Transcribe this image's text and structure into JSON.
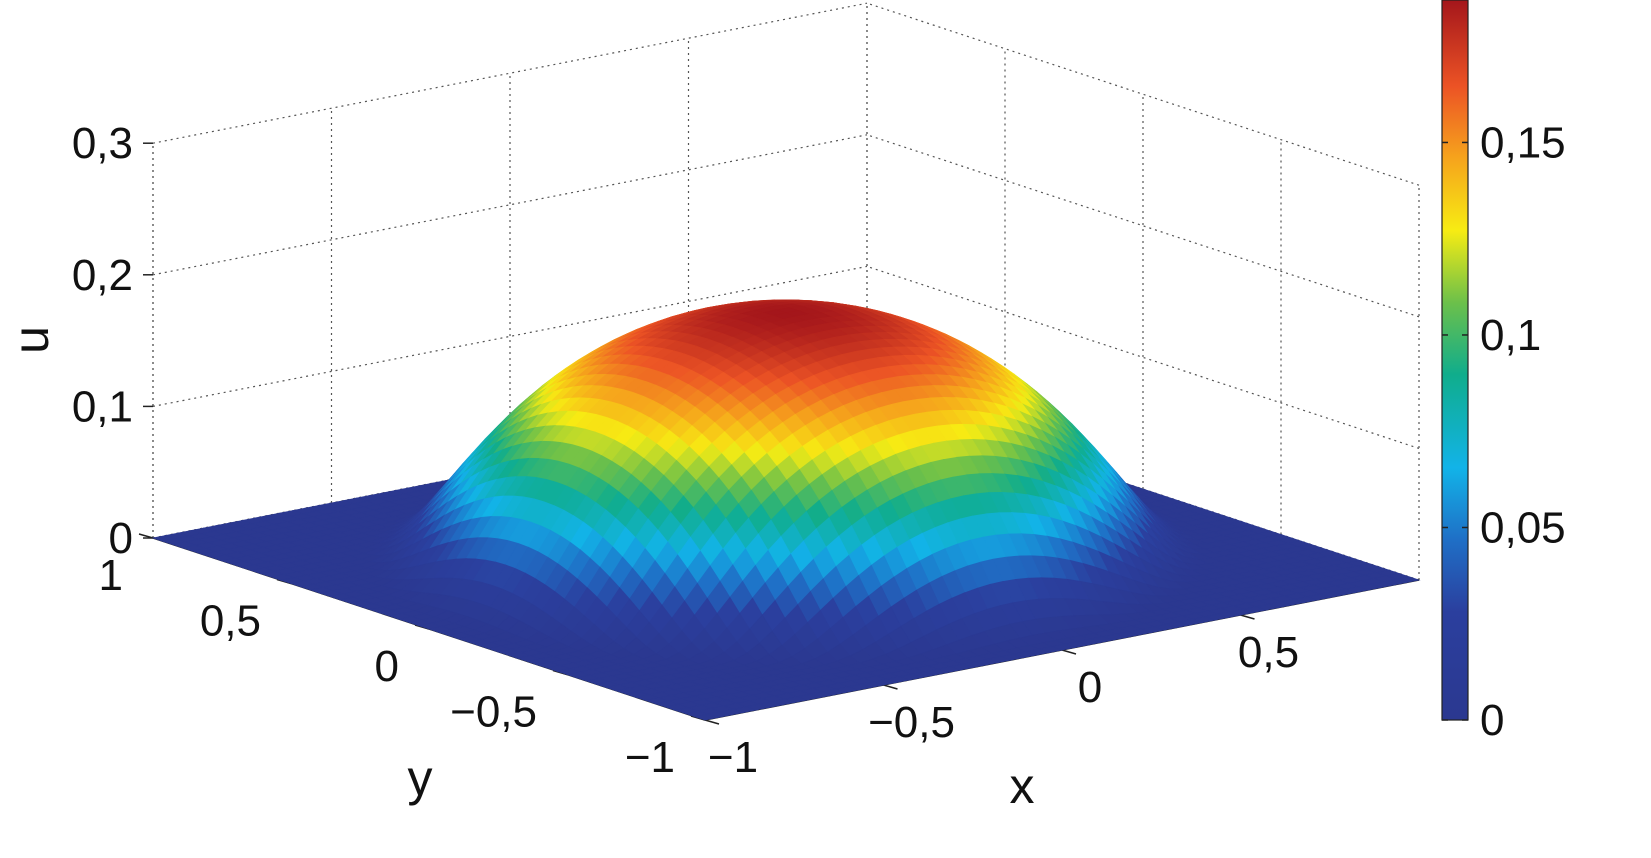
{
  "chart_data": {
    "type": "surface",
    "xlabel": "x",
    "ylabel": "y",
    "zlabel": "u",
    "xlim": [
      -1,
      1
    ],
    "ylim": [
      -1,
      1
    ],
    "zlim": [
      0,
      0.3
    ],
    "x_ticks": [
      "−1",
      "−0,5",
      "0",
      "0,5"
    ],
    "x_tick_values": [
      -1,
      -0.5,
      0,
      0.5
    ],
    "y_ticks": [
      "−1",
      "−0,5",
      "0",
      "0,5",
      "1"
    ],
    "y_tick_values": [
      -1,
      -0.5,
      0,
      0.5,
      1
    ],
    "z_ticks": [
      "0",
      "0,1",
      "0,2",
      "0,3"
    ],
    "z_tick_values": [
      0,
      0.1,
      0.2,
      0.3
    ],
    "peak": {
      "x": 0,
      "y": 0,
      "u": 0.187
    },
    "support_radius": 1,
    "grid": true,
    "colorbar": {
      "range": [
        0,
        0.187
      ],
      "ticks": [
        "0",
        "0,05",
        "0,1",
        "0,15"
      ],
      "tick_values": [
        0,
        0.05,
        0.1,
        0.15
      ],
      "colormap": "jet"
    }
  }
}
